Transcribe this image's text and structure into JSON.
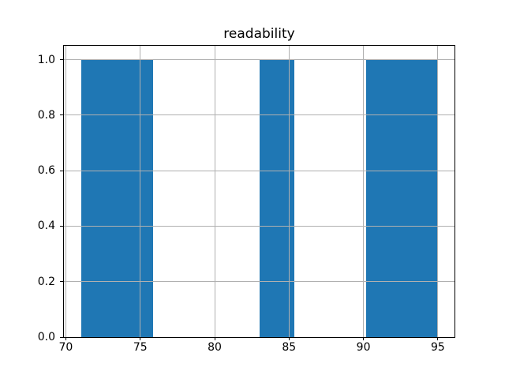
{
  "figure": {
    "background": "#ffffff"
  },
  "chart_data": {
    "type": "bar",
    "chart_kind": "histogram",
    "title": "readability",
    "xlabel": "",
    "ylabel": "",
    "bar_color": "#1f77b4",
    "grid": true,
    "grid_color": "#b0b0b0",
    "axis_color": "#000000",
    "xlim": [
      69.87,
      96.12
    ],
    "ylim": [
      0,
      1.05
    ],
    "xticks": [
      {
        "value": 70,
        "label": "70"
      },
      {
        "value": 75,
        "label": "75"
      },
      {
        "value": 80,
        "label": "80"
      },
      {
        "value": 85,
        "label": "85"
      },
      {
        "value": 90,
        "label": "90"
      },
      {
        "value": 95,
        "label": "95"
      }
    ],
    "yticks": [
      {
        "value": 0.0,
        "label": "0.0"
      },
      {
        "value": 0.2,
        "label": "0.2"
      },
      {
        "value": 0.4,
        "label": "0.4"
      },
      {
        "value": 0.6,
        "label": "0.6"
      },
      {
        "value": 0.8,
        "label": "0.8"
      },
      {
        "value": 1.0,
        "label": "1.0"
      }
    ],
    "bins": [
      {
        "x0": 71.06,
        "x1": 73.45,
        "value": 1.0
      },
      {
        "x0": 73.45,
        "x1": 75.84,
        "value": 1.0
      },
      {
        "x0": 75.84,
        "x1": 78.22,
        "value": 0
      },
      {
        "x0": 78.22,
        "x1": 80.61,
        "value": 0
      },
      {
        "x0": 80.61,
        "x1": 83.0,
        "value": 0
      },
      {
        "x0": 83.0,
        "x1": 85.38,
        "value": 1.0
      },
      {
        "x0": 85.38,
        "x1": 87.77,
        "value": 0
      },
      {
        "x0": 87.77,
        "x1": 90.16,
        "value": 0
      },
      {
        "x0": 90.16,
        "x1": 92.54,
        "value": 1.0
      },
      {
        "x0": 92.54,
        "x1": 94.93,
        "value": 1.0
      }
    ]
  }
}
